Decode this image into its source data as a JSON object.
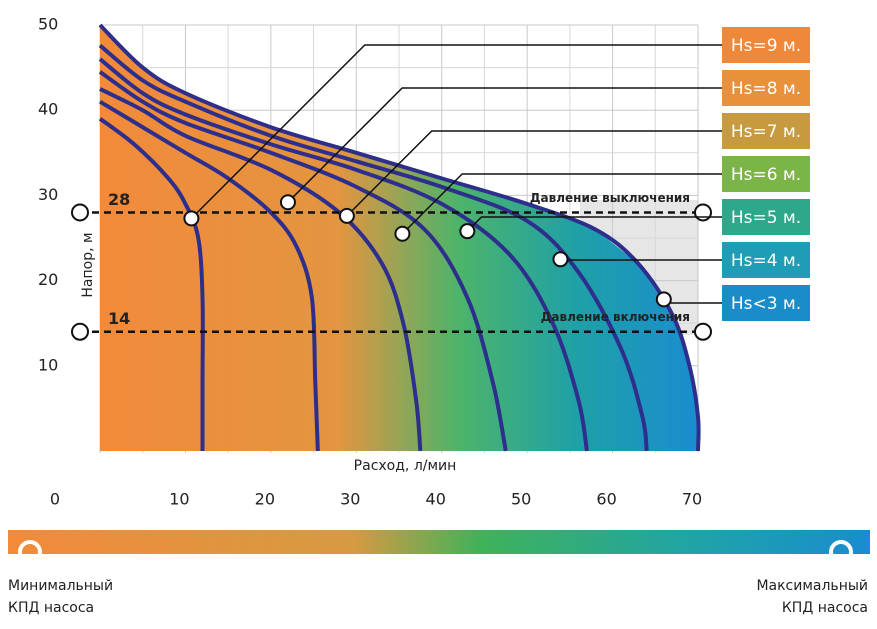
{
  "chart_data": {
    "type": "line",
    "x_label": "Расход, л/мин",
    "y_label": "Напор, м",
    "xlim": [
      0,
      70
    ],
    "ylim": [
      0,
      50
    ],
    "xticks": [
      0,
      10,
      20,
      30,
      40,
      50,
      60,
      70
    ],
    "yticks": [
      10,
      20,
      30,
      40,
      50
    ],
    "grid": true,
    "line_color": "#2e2f8c",
    "series": [
      {
        "name": "Hs=9 м.",
        "color": "#f0883a",
        "x": [
          0,
          4,
          8,
          10,
          11.5,
          12,
          12,
          12
        ],
        "values": [
          39,
          36,
          32,
          29,
          25,
          18,
          8,
          0
        ],
        "point": [
          10.7,
          27.3
        ]
      },
      {
        "name": "Hs=8 м.",
        "color": "#e8903a",
        "x": [
          0,
          5,
          10,
          15,
          20,
          23,
          24.8,
          25.2,
          25.5
        ],
        "values": [
          41,
          38,
          35,
          32,
          28,
          24,
          18,
          8,
          0
        ],
        "point": [
          22,
          29.2
        ]
      },
      {
        "name": "Hs=7 м.",
        "color": "#c79a3f",
        "x": [
          0,
          5,
          10,
          20,
          28,
          33,
          35.5,
          37,
          37.5
        ],
        "values": [
          42.5,
          40,
          37,
          33,
          28,
          22,
          15,
          6,
          0
        ],
        "point": [
          28.9,
          27.6
        ]
      },
      {
        "name": "Hs=6 м.",
        "color": "#7bb548",
        "x": [
          0,
          5,
          10,
          20,
          30,
          38,
          43,
          46,
          47.5
        ],
        "values": [
          44.5,
          41,
          38.5,
          35,
          31,
          26,
          18,
          8,
          0
        ],
        "point": [
          35.4,
          25.5
        ]
      },
      {
        "name": "Hs=5 м.",
        "color": "#2ea88a",
        "x": [
          0,
          5,
          10,
          20,
          30,
          40,
          48,
          53,
          56,
          57
        ],
        "values": [
          46,
          42,
          39.5,
          36,
          33,
          29,
          23,
          15,
          6,
          0
        ],
        "point": [
          43,
          25.8
        ]
      },
      {
        "name": "Hs=4 м.",
        "color": "#1f9cb6",
        "x": [
          0,
          5,
          10,
          20,
          30,
          40,
          50,
          56,
          61,
          63.5,
          64
        ],
        "values": [
          47.6,
          43.5,
          41,
          37,
          34,
          31,
          27,
          21,
          12,
          4,
          0
        ],
        "point": [
          53.9,
          22.5
        ]
      },
      {
        "name": "Hs<3 м.",
        "color": "#1a8cc9",
        "x": [
          0,
          5,
          10,
          20,
          30,
          40,
          50,
          58,
          63,
          67,
          69,
          70,
          70
        ],
        "values": [
          50,
          45,
          42,
          38,
          35,
          32,
          29,
          26,
          22,
          16,
          10,
          4,
          0
        ],
        "point": [
          66,
          17.8
        ]
      }
    ],
    "pressure_lines": [
      {
        "value": 28,
        "text": "Давление выключения"
      },
      {
        "value": 14,
        "text": "Давление включения"
      }
    ],
    "efficiency_scale": {
      "min_label": [
        "Минимальный",
        "КПД насоса"
      ],
      "max_label": [
        "Максимальный",
        "КПД насоса"
      ]
    }
  }
}
